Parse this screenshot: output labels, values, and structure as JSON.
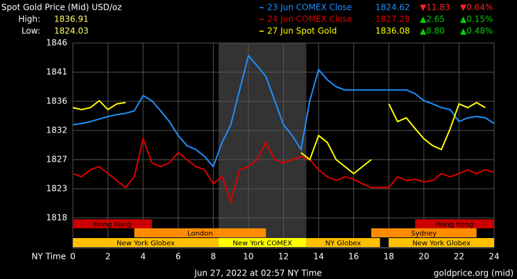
{
  "chart_data": {
    "type": "line",
    "title": "Spot Gold Price (Mid) USD/oz",
    "high_label": "High:",
    "high": 1836.91,
    "low_label": "Low:",
    "low": 1824.03,
    "x_label": "NY Time",
    "timestamp": "Jun 27, 2022 at 02:57 NY Time",
    "source": "goldprice.org (mid)",
    "x": [
      0,
      0.5,
      1,
      1.5,
      2,
      2.5,
      3,
      3.5,
      4,
      4.5,
      5,
      5.5,
      6,
      6.5,
      7,
      7.5,
      8,
      8.5,
      9,
      9.5,
      10,
      10.5,
      11,
      11.5,
      12,
      12.5,
      13,
      13.5,
      14,
      14.5,
      15,
      15.5,
      16,
      16.5,
      17,
      17.5,
      18,
      18.5,
      19,
      19.5,
      20,
      20.5,
      21,
      21.5,
      22,
      22.5,
      23,
      23.5,
      24
    ],
    "series": [
      {
        "name": "23 Jun COMEX Close",
        "color": "#1e90ff",
        "last": 1824.62,
        "change": "▼11.83",
        "change_pct": "▼0.64%",
        "change_color": "#ff2020",
        "values": [
          1832.7,
          1832.9,
          1833.2,
          1833.6,
          1834,
          1834.3,
          1834.5,
          1834.9,
          1837.3,
          1836.5,
          1834.9,
          1833.2,
          1831,
          1829.4,
          1828.8,
          1827.7,
          1826.1,
          1829.9,
          1832.7,
          1838.2,
          1843.6,
          1842,
          1840.3,
          1836.5,
          1832.7,
          1831,
          1828.8,
          1836.5,
          1841.4,
          1839.8,
          1838.7,
          1838.2,
          1838.2,
          1838.2,
          1838.2,
          1838.2,
          1838.2,
          1838.2,
          1838.2,
          1837.6,
          1836.5,
          1836,
          1835.4,
          1835.1,
          1833.2,
          1833.8,
          1834,
          1833.8,
          1832.9
        ]
      },
      {
        "name": "24 Jun COMEX Close",
        "color": "#dd0000",
        "last": 1827.28,
        "change": "▲2.65",
        "change_pct": "▲0.15%",
        "change_color": "#00d000",
        "values": [
          1825,
          1824.5,
          1825.6,
          1826.1,
          1825,
          1823.9,
          1822.8,
          1824.5,
          1830.5,
          1826.7,
          1826.1,
          1826.7,
          1828.3,
          1827.2,
          1826.1,
          1825.6,
          1823.4,
          1824.5,
          1820.6,
          1825.6,
          1826.1,
          1827.2,
          1829.9,
          1827.2,
          1826.7,
          1827.2,
          1827.7,
          1827.2,
          1825.6,
          1824.5,
          1823.9,
          1824.5,
          1824.1,
          1823.4,
          1822.8,
          1822.8,
          1822.8,
          1824.5,
          1823.9,
          1824.1,
          1823.7,
          1823.9,
          1825,
          1824.5,
          1825,
          1825.6,
          1825,
          1825.6,
          1825.2
        ]
      },
      {
        "name": "27 Jun Spot Gold",
        "color": "#ffff00",
        "last": 1836.08,
        "change": "▲8.80",
        "change_pct": "▲0.48%",
        "change_color": "#00d000",
        "values": [
          1835.4,
          1835.1,
          1835.4,
          1836.5,
          1835.1,
          1836,
          1836.2,
          null,
          null,
          null,
          null,
          null,
          null,
          null,
          null,
          null,
          null,
          null,
          null,
          null,
          null,
          null,
          null,
          null,
          null,
          null,
          1828.3,
          1827.2,
          1831,
          1829.9,
          1827.2,
          1826.1,
          1825,
          1826.1,
          1827.2,
          null,
          1836,
          1833.2,
          1833.8,
          1832.1,
          1830.5,
          1829.4,
          1828.8,
          1832.1,
          1836,
          1835.4,
          1836.2,
          1835.4,
          null
        ]
      }
    ],
    "xlim": [
      0,
      24
    ],
    "xticks": [
      0,
      2,
      4,
      6,
      8,
      10,
      12,
      14,
      16,
      18,
      20,
      22,
      24
    ],
    "ylim": [
      1818.0,
      1845.6
    ],
    "yticks": [
      1818,
      {
        "value": 1822.6,
        "label": "1823"
      },
      {
        "value": 1827.2,
        "label": "1827"
      },
      {
        "value": 1831.8,
        "label": "1832"
      },
      {
        "value": 1836.4,
        "label": "1836"
      },
      1841,
      {
        "value": 1845.6,
        "label": "1846"
      }
    ],
    "grid": true,
    "highlight": [
      8.3,
      13.3
    ],
    "session_rows": [
      [
        {
          "name": "Hong Kong",
          "start": 0,
          "end": 4.5,
          "color": "#cc0000"
        },
        {
          "name": "Hong Kong",
          "start": 19.5,
          "end": 24,
          "color": "#cc0000"
        }
      ],
      [
        {
          "name": "London",
          "start": 3.5,
          "end": 11,
          "color": "#ff8c00"
        },
        {
          "name": "Sydney",
          "start": 17,
          "end": 23,
          "color": "#ff8c00"
        }
      ],
      [
        {
          "name": "New York Globex",
          "start": 0,
          "end": 8.3,
          "color": "#ffc000"
        },
        {
          "name": "New York COMEX",
          "start": 8.3,
          "end": 13.3,
          "color": "#ffff00"
        },
        {
          "name": "NY Globex",
          "start": 13.3,
          "end": 17.5,
          "color": "#ffc000"
        },
        {
          "name": "New York Globex",
          "start": 18,
          "end": 24,
          "color": "#ffc000"
        }
      ]
    ]
  }
}
